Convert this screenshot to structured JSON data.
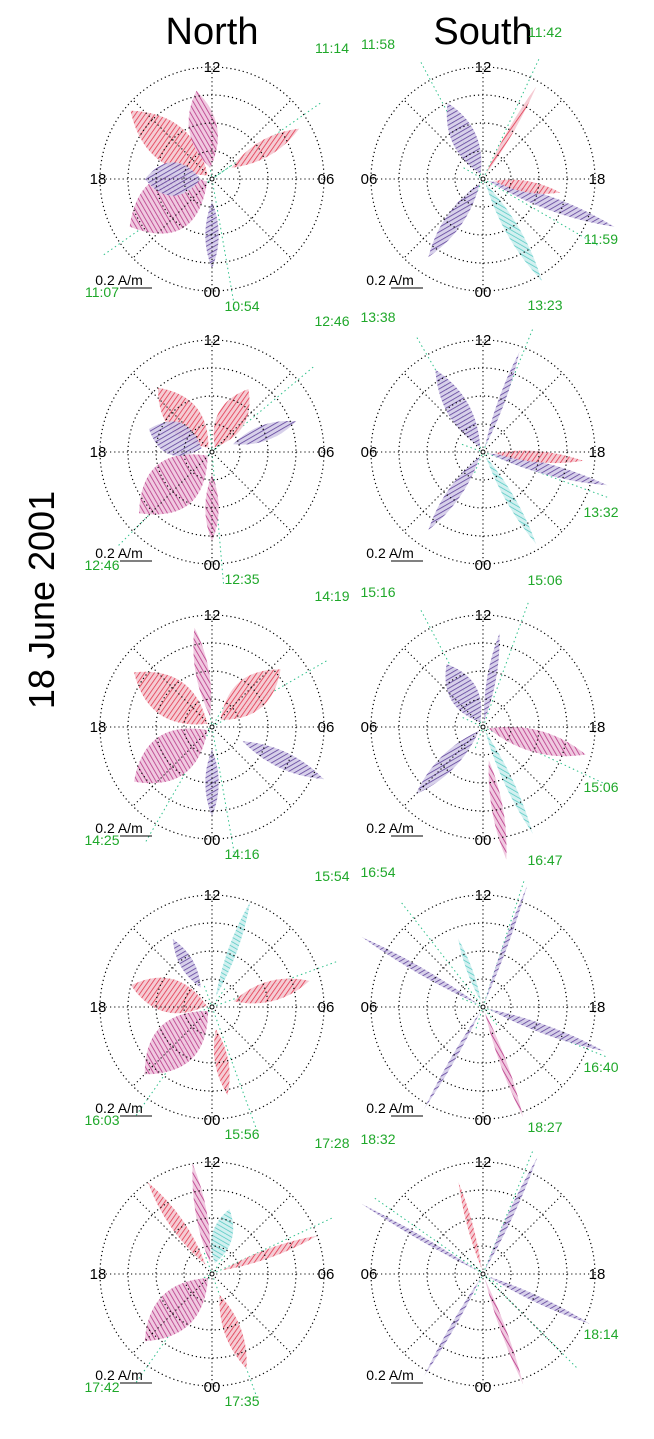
{
  "figure": {
    "headers": {
      "north": "North",
      "south": "South"
    },
    "side_label": "18 June 2001",
    "scale_label": "0.2 A/m",
    "colors": {
      "red": "#e0203a",
      "magenta": "#b0207a",
      "purple": "#4b2a8e",
      "cyan": "#34c0b8",
      "utc_label": "#1fa82a",
      "grid": "#000000"
    },
    "rows": [
      {
        "north": {
          "mlt": {
            "top": "12",
            "left": "18",
            "right": "06",
            "bottom": "00"
          },
          "times": [
            "11:14",
            "11:07",
            "10:54"
          ]
        },
        "south": {
          "mlt": {
            "top": "12",
            "left": "06",
            "right": "18",
            "bottom": "00"
          },
          "times": [
            "11:58",
            "11:42",
            "11:59"
          ]
        }
      },
      {
        "north": {
          "mlt": {
            "top": "12",
            "left": "18",
            "right": "06",
            "bottom": "00"
          },
          "times": [
            "12:46",
            "12:46",
            "12:35"
          ]
        },
        "south": {
          "mlt": {
            "top": "12",
            "left": "06",
            "right": "18",
            "bottom": "00"
          },
          "times": [
            "13:38",
            "13:23",
            "13:32"
          ]
        }
      },
      {
        "north": {
          "mlt": {
            "top": "12",
            "left": "18",
            "right": "06",
            "bottom": "00"
          },
          "times": [
            "14:19",
            "14:25",
            "14:16"
          ]
        },
        "south": {
          "mlt": {
            "top": "12",
            "left": "06",
            "right": "18",
            "bottom": "00"
          },
          "times": [
            "15:16",
            "15:06",
            "15:06"
          ]
        }
      },
      {
        "north": {
          "mlt": {
            "top": "12",
            "left": "18",
            "right": "06",
            "bottom": "00"
          },
          "times": [
            "15:54",
            "16:03",
            "15:56"
          ]
        },
        "south": {
          "mlt": {
            "top": "12",
            "left": "06",
            "right": "18",
            "bottom": "00"
          },
          "times": [
            "16:54",
            "16:47",
            "16:40"
          ]
        }
      },
      {
        "north": {
          "mlt": {
            "top": "12",
            "left": "18",
            "right": "06",
            "bottom": "00"
          },
          "times": [
            "17:28",
            "17:42",
            "17:35"
          ]
        },
        "south": {
          "mlt": {
            "top": "12",
            "left": "06",
            "right": "18",
            "bottom": "00"
          },
          "times": [
            "18:32",
            "18:27",
            "18:14"
          ]
        }
      }
    ]
  }
}
